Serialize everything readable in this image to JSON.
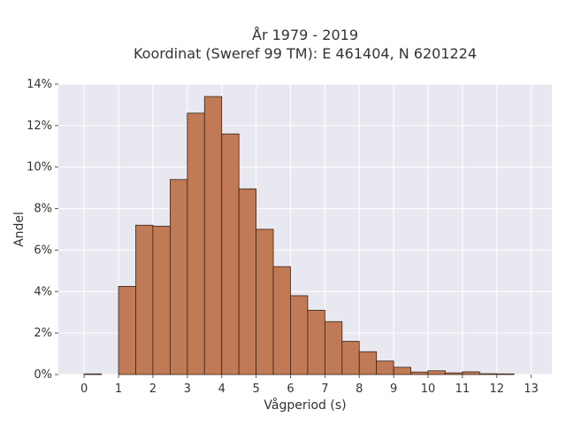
{
  "chart_data": {
    "type": "bar",
    "title_lines": [
      "År 1979 - 2019",
      "Koordinat (Sweref 99 TM): E 461404, N 6201224"
    ],
    "xlabel": "Vågperiod (s)",
    "ylabel": "Andel",
    "xlim": [
      -0.75,
      13.6
    ],
    "ylim": [
      0,
      14
    ],
    "x_ticks": [
      0,
      1,
      2,
      3,
      4,
      5,
      6,
      7,
      8,
      9,
      10,
      11,
      12,
      13
    ],
    "y_ticks": [
      0,
      2,
      4,
      6,
      8,
      10,
      12,
      14
    ],
    "y_tick_suffix": "%",
    "bin_width": 0.5,
    "grid": true,
    "bar_color": "#c07a55",
    "bar_edge_color": "#3a2418",
    "plot_bg": "#e8e8f0",
    "bins": [
      {
        "x0": 0.0,
        "x1": 0.5,
        "value": 0.03
      },
      {
        "x0": 1.0,
        "x1": 1.5,
        "value": 4.25
      },
      {
        "x0": 1.5,
        "x1": 2.0,
        "value": 7.2
      },
      {
        "x0": 2.0,
        "x1": 2.5,
        "value": 7.15
      },
      {
        "x0": 2.5,
        "x1": 3.0,
        "value": 9.4
      },
      {
        "x0": 3.0,
        "x1": 3.5,
        "value": 12.6
      },
      {
        "x0": 3.5,
        "x1": 4.0,
        "value": 13.4
      },
      {
        "x0": 4.0,
        "x1": 4.5,
        "value": 11.6
      },
      {
        "x0": 4.5,
        "x1": 5.0,
        "value": 8.95
      },
      {
        "x0": 5.0,
        "x1": 5.5,
        "value": 7.0
      },
      {
        "x0": 5.5,
        "x1": 6.0,
        "value": 5.2
      },
      {
        "x0": 6.0,
        "x1": 6.5,
        "value": 3.8
      },
      {
        "x0": 6.5,
        "x1": 7.0,
        "value": 3.1
      },
      {
        "x0": 7.0,
        "x1": 7.5,
        "value": 2.55
      },
      {
        "x0": 7.5,
        "x1": 8.0,
        "value": 1.6
      },
      {
        "x0": 8.0,
        "x1": 8.5,
        "value": 1.1
      },
      {
        "x0": 8.5,
        "x1": 9.0,
        "value": 0.65
      },
      {
        "x0": 9.0,
        "x1": 9.5,
        "value": 0.35
      },
      {
        "x0": 9.5,
        "x1": 10.0,
        "value": 0.12
      },
      {
        "x0": 10.0,
        "x1": 10.5,
        "value": 0.18
      },
      {
        "x0": 10.5,
        "x1": 11.0,
        "value": 0.08
      },
      {
        "x0": 11.0,
        "x1": 11.5,
        "value": 0.13
      },
      {
        "x0": 11.5,
        "x1": 12.0,
        "value": 0.04
      },
      {
        "x0": 12.0,
        "x1": 12.5,
        "value": 0.03
      }
    ]
  }
}
